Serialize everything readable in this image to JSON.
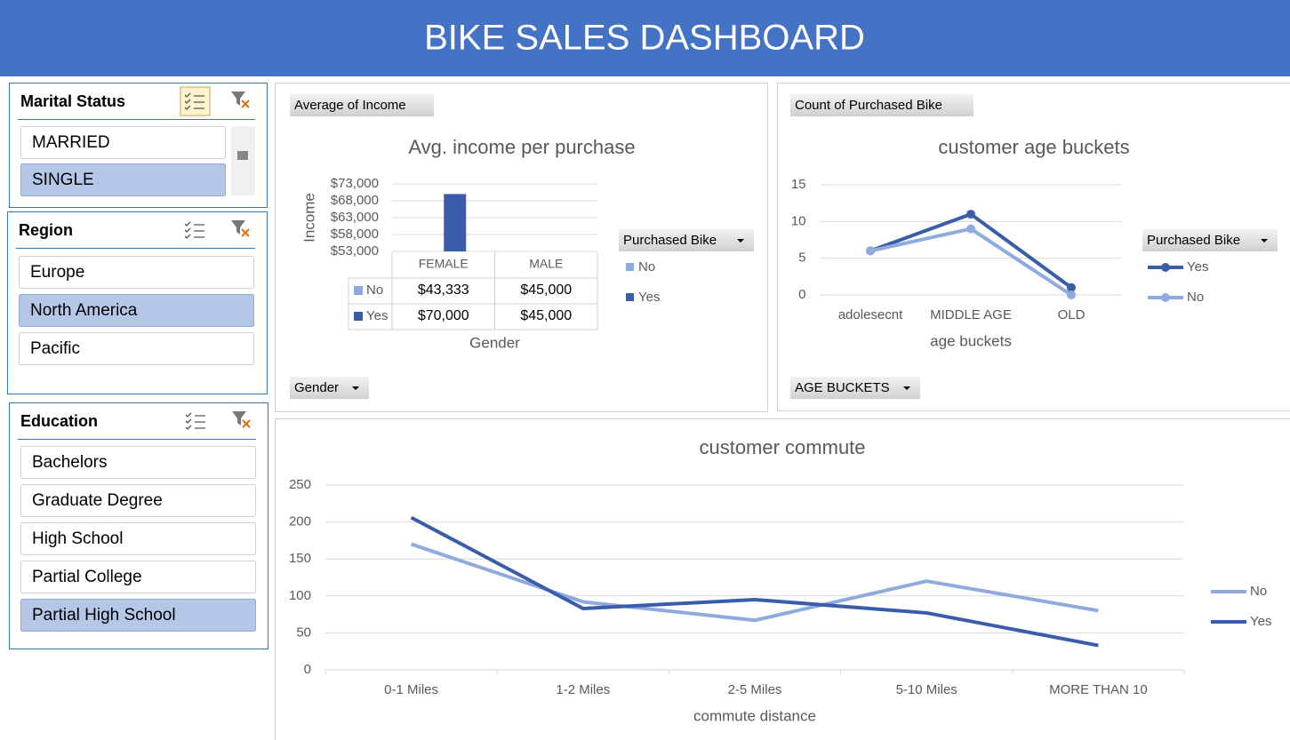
{
  "header": {
    "title": "BIKE SALES DASHBOARD"
  },
  "slicers": [
    {
      "title": "Marital Status",
      "items": [
        "MARRIED",
        "SINGLE"
      ],
      "selected": [
        false,
        true
      ],
      "multi_select": true
    },
    {
      "title": "Region",
      "items": [
        "Europe",
        "North America",
        "Pacific"
      ],
      "selected": [
        false,
        true,
        false
      ],
      "multi_select": false
    },
    {
      "title": "Education",
      "items": [
        "Bachelors",
        "Graduate Degree",
        "High School",
        "Partial College",
        "Partial High School"
      ],
      "selected": [
        false,
        false,
        false,
        false,
        true
      ],
      "multi_select": false
    }
  ],
  "chart_data": [
    {
      "type": "bar",
      "title": "Avg. income per purchase",
      "y_label": "Income",
      "x_label": "Gender",
      "field_buttons": {
        "value": "Average of Income",
        "axis": "Gender",
        "legend": "Purchased Bike"
      },
      "categories": [
        "FEMALE",
        "MALE"
      ],
      "series": [
        {
          "name": "No",
          "color": "#8faadc",
          "values": [
            43333,
            45000
          ],
          "value_labels": [
            "$43,333",
            "$45,000"
          ]
        },
        {
          "name": "Yes",
          "color": "#3b5ca9",
          "values": [
            70000,
            45000
          ],
          "value_labels": [
            "$70,000",
            "$45,000"
          ]
        }
      ],
      "ylim": [
        53000,
        73000
      ],
      "yticks": [
        {
          "value": 53000,
          "label": "$53,000"
        },
        {
          "value": 58000,
          "label": "$58,000"
        },
        {
          "value": 63000,
          "label": "$63,000"
        },
        {
          "value": 68000,
          "label": "$68,000"
        },
        {
          "value": 73000,
          "label": "$73,000"
        }
      ],
      "grid": true
    },
    {
      "type": "line",
      "title": "customer age  buckets",
      "x_label": "age buckets",
      "markers": true,
      "field_buttons": {
        "value": "Count of Purchased Bike",
        "axis": "AGE BUCKETS",
        "legend": "Purchased Bike"
      },
      "categories": [
        "adolesecnt",
        "MIDDLE AGE",
        "OLD"
      ],
      "series": [
        {
          "name": "Yes",
          "color": "#3b5ca9",
          "values": [
            6,
            11,
            1
          ]
        },
        {
          "name": "No",
          "color": "#8faadc",
          "values": [
            6,
            9,
            0
          ]
        }
      ],
      "ylim": [
        0,
        15
      ],
      "yticks": [
        0,
        5,
        10,
        15
      ],
      "grid": true
    },
    {
      "type": "line",
      "title": "customer commute",
      "x_label": "commute distance",
      "markers": false,
      "categories": [
        "0-1 Miles",
        "1-2 Miles",
        "2-5 Miles",
        "5-10 Miles",
        "MORE THAN 10"
      ],
      "series": [
        {
          "name": "No",
          "color": "#8faadc",
          "values": [
            170,
            92,
            67,
            120,
            80
          ]
        },
        {
          "name": "Yes",
          "color": "#3b5ca9",
          "values": [
            206,
            83,
            95,
            77,
            33
          ]
        }
      ],
      "ylim": [
        0,
        250
      ],
      "yticks": [
        0,
        50,
        100,
        150,
        200,
        250
      ],
      "grid": true
    }
  ]
}
